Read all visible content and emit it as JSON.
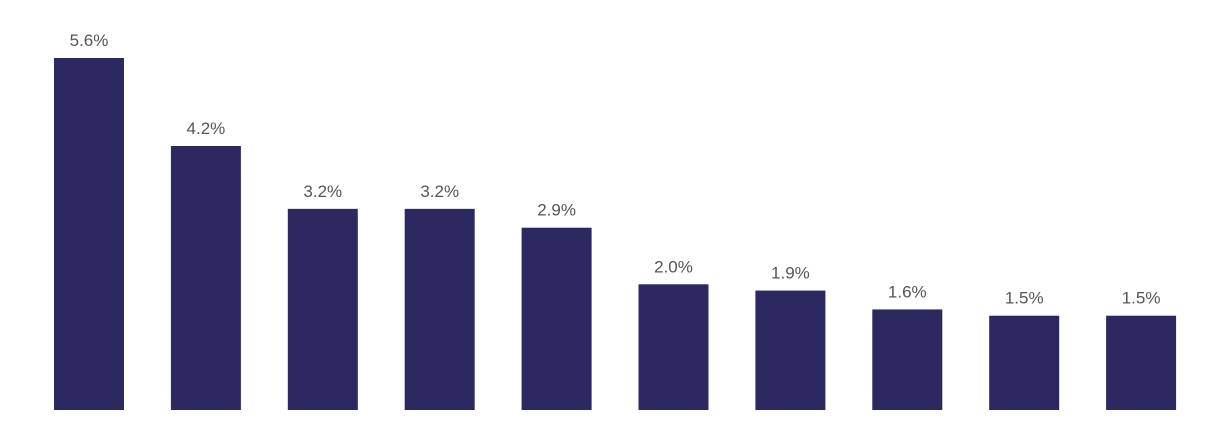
{
  "chart_data": {
    "type": "bar",
    "categories": [
      null,
      null,
      null,
      null,
      null,
      null,
      null,
      null,
      null,
      null
    ],
    "values": [
      5.6,
      4.2,
      3.2,
      3.2,
      2.9,
      2.0,
      1.9,
      1.6,
      1.5,
      1.5
    ],
    "value_labels": [
      "5.6%",
      "4.2%",
      "3.2%",
      "3.2%",
      "2.9%",
      "2.0%",
      "1.9%",
      "1.6%",
      "1.5%",
      "1.5%"
    ],
    "color": "#2c2960"
  }
}
